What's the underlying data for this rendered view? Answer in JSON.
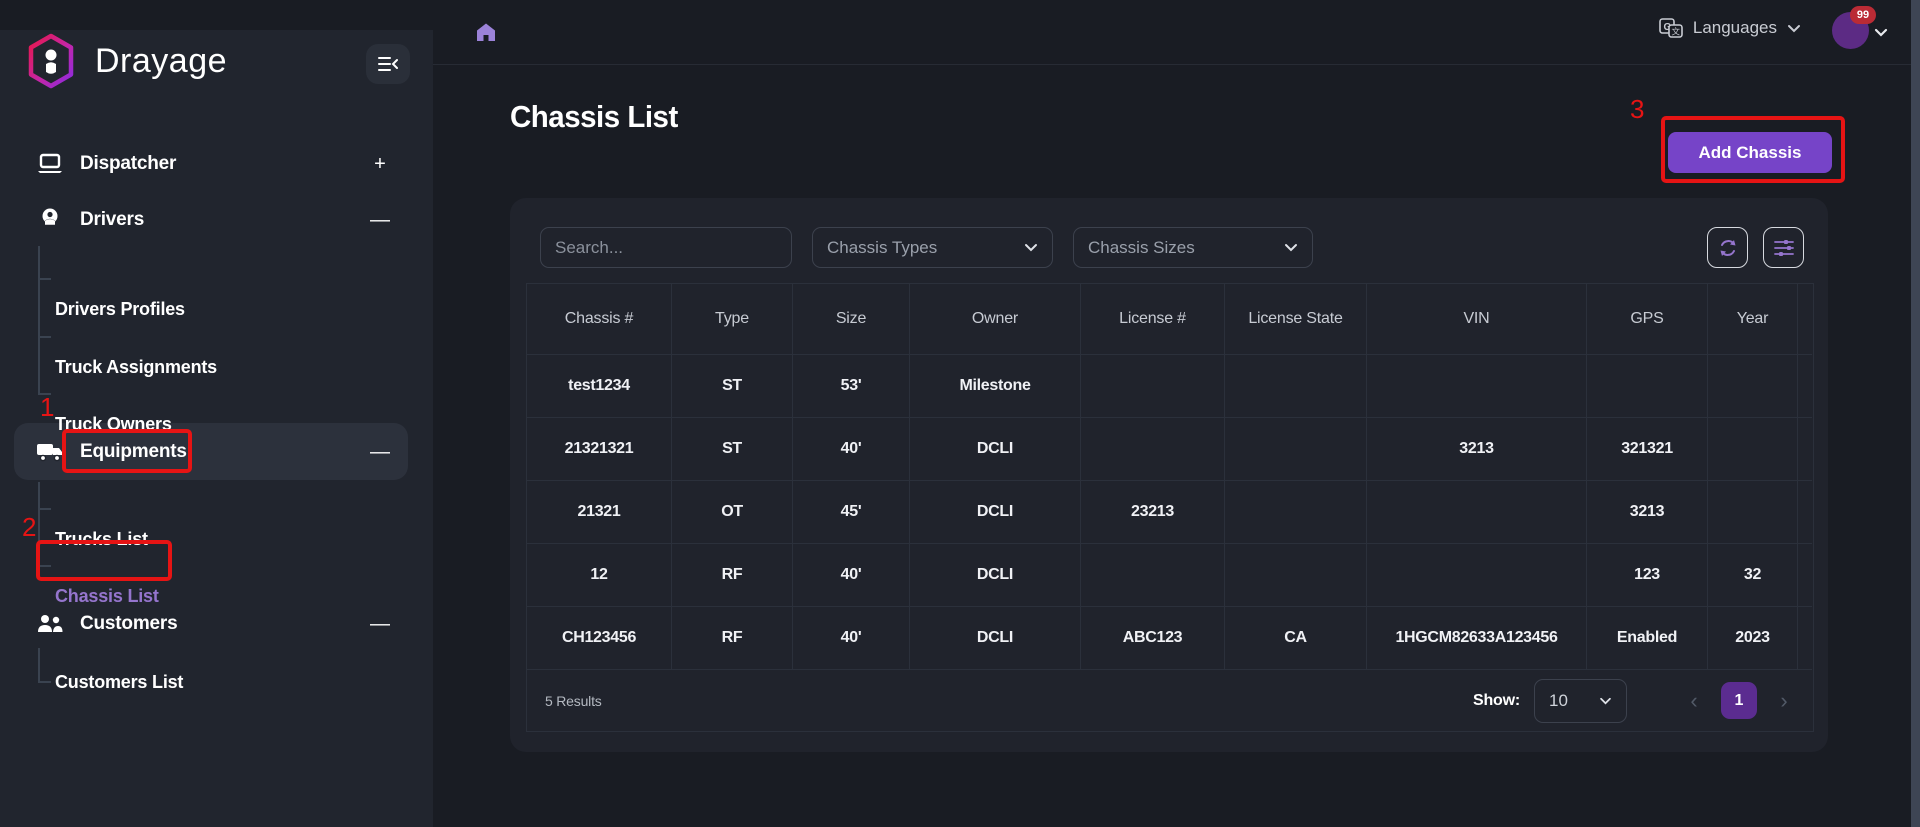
{
  "colors": {
    "accent_purple": "#7644c8",
    "active_link_purple": "#9575cd",
    "pagination_purple": "#5b2c90",
    "avatar_purple": "#5c2b84",
    "annotation_red": "#e61414",
    "badge_red": "#ba2b35",
    "sidebar_bg": "#21252e",
    "page_bg": "#191c23",
    "card_bg": "#20232c"
  },
  "brand": {
    "name": "Drayage"
  },
  "topbar": {
    "languages": "Languages",
    "badge": "99"
  },
  "sidebar": {
    "items": [
      {
        "label": "Dispatcher",
        "toggle": "+"
      },
      {
        "label": "Drivers",
        "toggle": "—"
      },
      {
        "label": "Drivers Profiles"
      },
      {
        "label": "Truck Assignments"
      },
      {
        "label": "Truck Owners"
      },
      {
        "label": "Equipments",
        "toggle": "—"
      },
      {
        "label": "Trucks List"
      },
      {
        "label": "Chassis List"
      },
      {
        "label": "Customers",
        "toggle": "—"
      },
      {
        "label": "Customers List"
      }
    ]
  },
  "annotations": {
    "n1": "1",
    "n2": "2",
    "n3": "3"
  },
  "page": {
    "title": "Chassis List",
    "add_button": "Add Chassis"
  },
  "filters": {
    "search_placeholder": "Search...",
    "types_label": "Chassis Types",
    "sizes_label": "Chassis Sizes"
  },
  "table": {
    "headers": [
      "Chassis #",
      "Type",
      "Size",
      "Owner",
      "License #",
      "License State",
      "VIN",
      "GPS",
      "Year"
    ],
    "rows": [
      [
        "test1234",
        "ST",
        "53'",
        "Milestone",
        "",
        "",
        "",
        "",
        ""
      ],
      [
        "21321321",
        "ST",
        "40'",
        "DCLI",
        "",
        "",
        "3213",
        "321321",
        ""
      ],
      [
        "21321",
        "OT",
        "45'",
        "DCLI",
        "23213",
        "",
        "",
        "3213",
        ""
      ],
      [
        "12",
        "RF",
        "40'",
        "DCLI",
        "",
        "",
        "",
        "123",
        "32"
      ],
      [
        "CH123456",
        "RF",
        "40'",
        "DCLI",
        "ABC123",
        "CA",
        "1HGCM82633A123456",
        "Enabled",
        "2023"
      ]
    ]
  },
  "pagination": {
    "results": "5 Results",
    "show_label": "Show:",
    "page_size": "10",
    "page": "1",
    "prev": "‹",
    "next": "›"
  }
}
